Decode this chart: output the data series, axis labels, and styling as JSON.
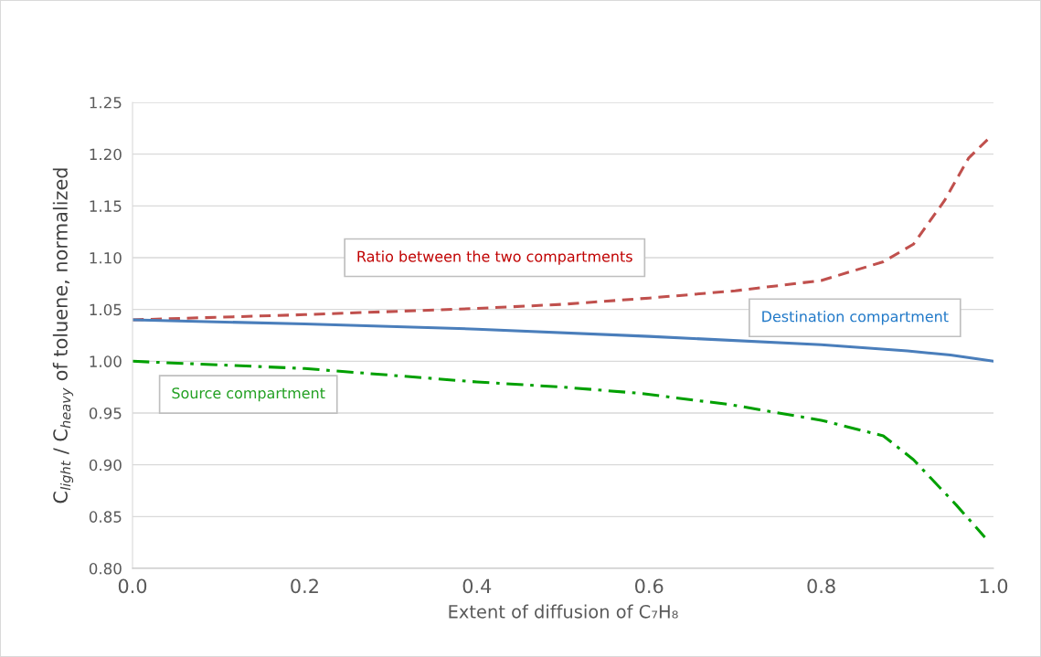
{
  "chart_data": {
    "type": "line",
    "xlabel": "Extent of diffusion of C₇H₈",
    "ylabel": "C$_{light}$ / C$_{heavy}$ of toluene, normalized",
    "xlim": [
      0,
      1
    ],
    "ylim": [
      0.8,
      1.25
    ],
    "xticks": [
      {
        "value": 0,
        "label": "0.0"
      },
      {
        "value": 0.2,
        "label": "0.2"
      },
      {
        "value": 0.4,
        "label": "0.4"
      },
      {
        "value": 0.6,
        "label": "0.6"
      },
      {
        "value": 0.8,
        "label": "0.8"
      },
      {
        "value": 1,
        "label": "1.0"
      }
    ],
    "yticks": [
      {
        "value": 0.8,
        "label": "0.80"
      },
      {
        "value": 0.85,
        "label": "0.85"
      },
      {
        "value": 0.9,
        "label": "0.90"
      },
      {
        "value": 0.95,
        "label": "0.95"
      },
      {
        "value": 1.0,
        "label": "1.00"
      },
      {
        "value": 1.05,
        "label": "1.05"
      },
      {
        "value": 1.1,
        "label": "1.10"
      },
      {
        "value": 1.15,
        "label": "1.15"
      },
      {
        "value": 1.2,
        "label": "1.20"
      },
      {
        "value": 1.25,
        "label": "1.25"
      }
    ],
    "grid": "y",
    "legend": false,
    "series": [
      {
        "name": "Ratio between the two compartments",
        "color": "#c0504d",
        "line_style": "dashed",
        "x": [
          0,
          0.2,
          0.4,
          0.5,
          0.6,
          0.7,
          0.8,
          0.872,
          0.907,
          0.943,
          0.971,
          0.993
        ],
        "values": [
          1.04,
          1.045,
          1.051,
          1.055,
          1.061,
          1.068,
          1.078,
          1.096,
          1.113,
          1.155,
          1.196,
          1.214
        ]
      },
      {
        "name": "Destination compartment",
        "color": "#4a7ebb",
        "line_style": "solid",
        "x": [
          0,
          0.2,
          0.4,
          0.6,
          0.8,
          0.9,
          0.95,
          1.0
        ],
        "values": [
          1.04,
          1.036,
          1.031,
          1.024,
          1.016,
          1.01,
          1.006,
          1.0
        ]
      },
      {
        "name": "Source compartment",
        "color": "#00a000",
        "line_style": "dashdot",
        "x": [
          0,
          0.2,
          0.4,
          0.5,
          0.59,
          0.695,
          0.8,
          0.872,
          0.907,
          0.957,
          0.99
        ],
        "values": [
          1.0,
          0.993,
          0.98,
          0.975,
          0.969,
          0.958,
          0.943,
          0.928,
          0.905,
          0.861,
          0.83
        ]
      }
    ]
  }
}
